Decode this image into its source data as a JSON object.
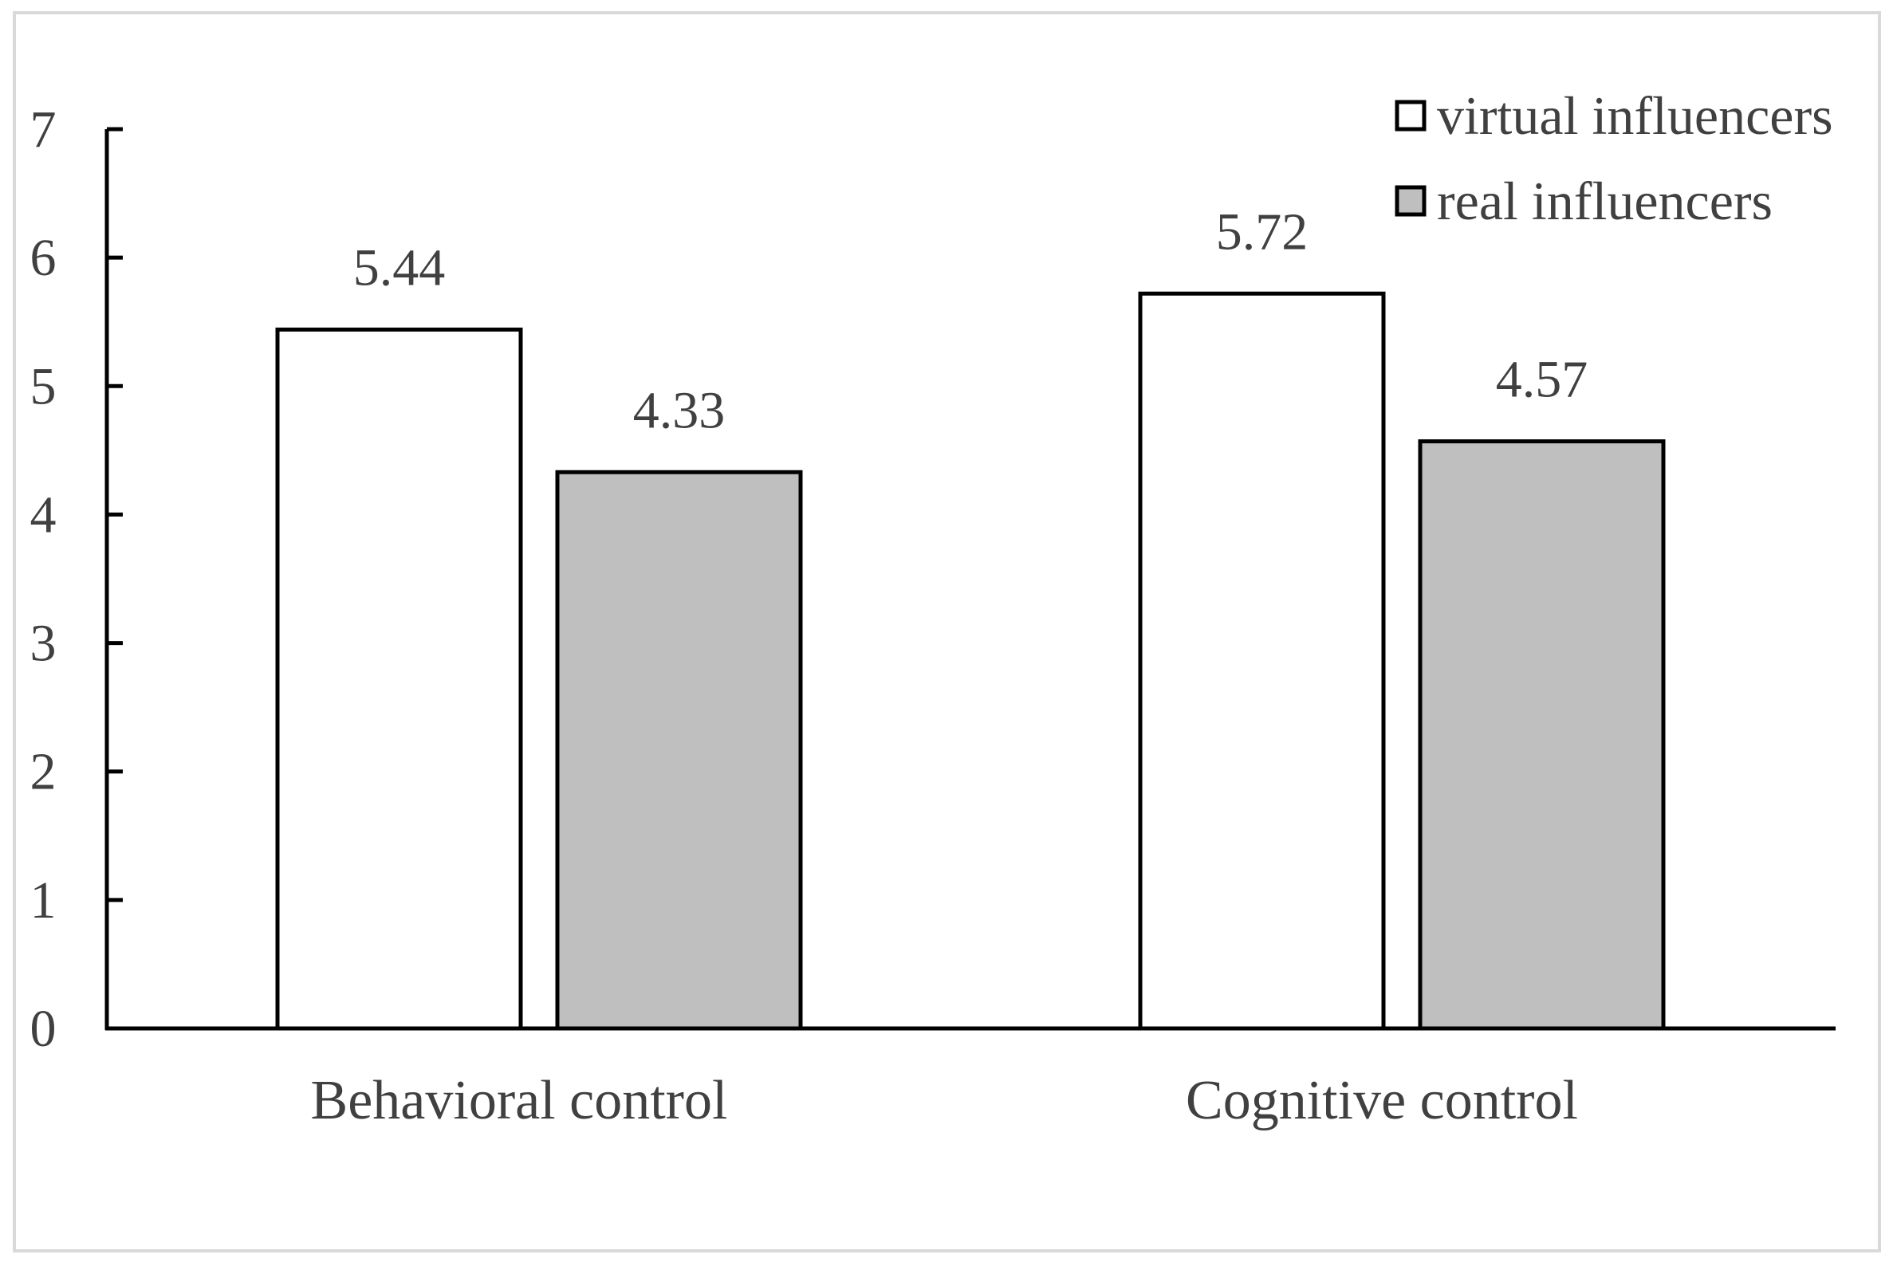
{
  "chart_data": {
    "type": "bar",
    "title": "",
    "xlabel": "",
    "ylabel": "",
    "categories": [
      "Behavioral control",
      "Cognitive control"
    ],
    "series": [
      {
        "name": "virtual influencers",
        "values": [
          5.44,
          5.72
        ],
        "color": "#ffffff"
      },
      {
        "name": "real influencers",
        "values": [
          4.33,
          4.57
        ],
        "color": "#bfbfbf"
      }
    ],
    "value_labels": [
      [
        "5.44",
        "5.72"
      ],
      [
        "4.33",
        "4.57"
      ]
    ],
    "ylim": [
      0,
      7
    ],
    "yticks": [
      0,
      1,
      2,
      3,
      4,
      5,
      6,
      7
    ],
    "grid": false,
    "legend_position": "top-right"
  }
}
